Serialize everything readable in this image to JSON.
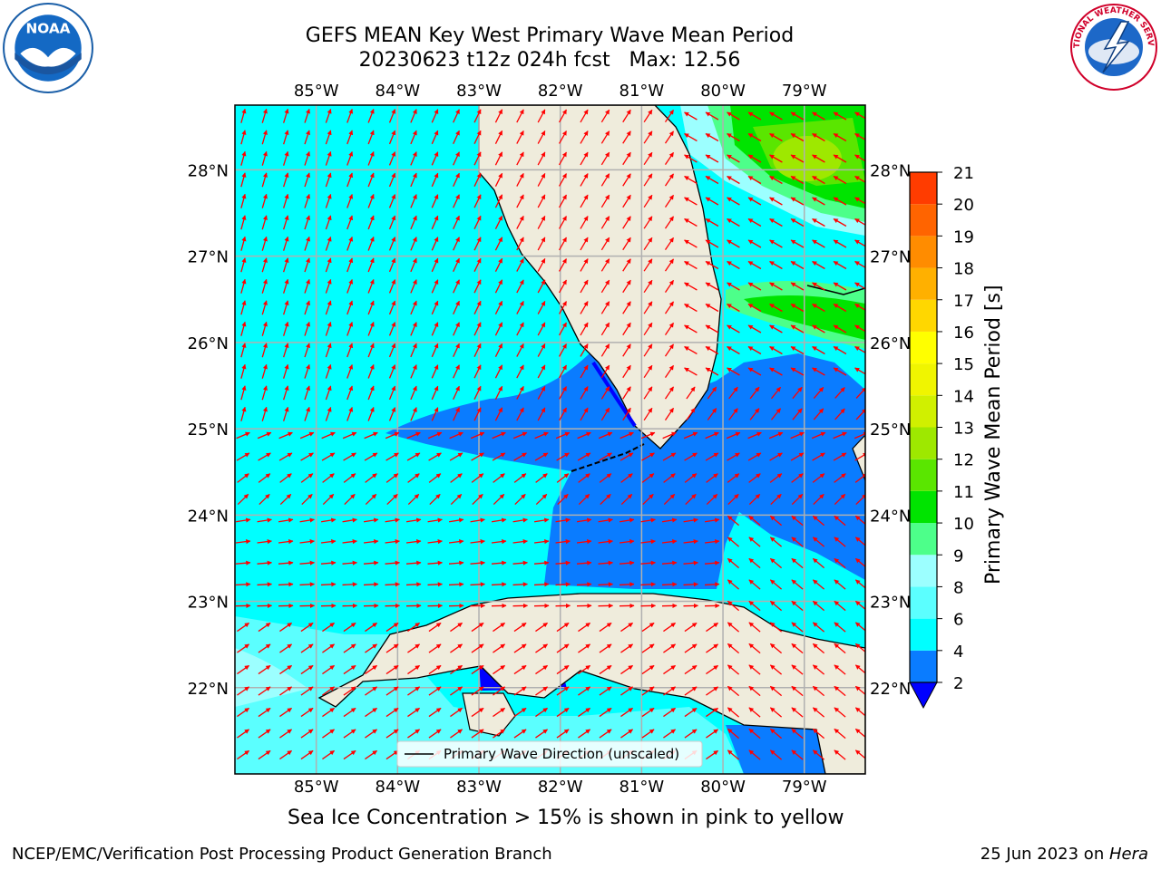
{
  "header": {
    "title_line1": "GEFS MEAN Key West Primary Wave Mean Period",
    "title_line2": "20230623 t12z 024h fcst   Max: 12.56"
  },
  "logos": {
    "left": {
      "icon": "noaa-logo-icon",
      "text": "NOAA"
    },
    "right": {
      "icon": "nws-logo-icon",
      "text": "NATIONAL WEATHER SERVICE"
    }
  },
  "map": {
    "lon_ticks": [
      "85°W",
      "84°W",
      "83°W",
      "82°W",
      "81°W",
      "80°W",
      "79°W"
    ],
    "lon_values": [
      -85,
      -84,
      -83,
      -82,
      -81,
      -80,
      -79
    ],
    "lat_ticks": [
      "28°N",
      "27°N",
      "26°N",
      "25°N",
      "24°N",
      "23°N",
      "22°N"
    ],
    "lat_values": [
      28,
      27,
      26,
      25,
      24,
      23,
      22
    ],
    "extent": {
      "lon_min": -86.0,
      "lon_max": -78.25,
      "lat_min": 21.0,
      "lat_max": 28.75
    },
    "grid": true,
    "land_color": "#efecdc",
    "arrow_color": "#ff0000",
    "legend_entry": "Primary Wave Direction (unscaled)"
  },
  "colorbar": {
    "label": "Primary Wave Mean Period [s]",
    "ticks": [
      "2",
      "4",
      "6",
      "8",
      "9",
      "10",
      "11",
      "12",
      "13",
      "14",
      "15",
      "16",
      "17",
      "18",
      "19",
      "20",
      "21"
    ],
    "levels": [
      2,
      4,
      6,
      8,
      9,
      10,
      11,
      12,
      13,
      14,
      15,
      16,
      17,
      18,
      19,
      20,
      21
    ],
    "colors": [
      "#0a7cff",
      "#00ffff",
      "#5bffff",
      "#9cffff",
      "#4dff8a",
      "#00e400",
      "#5ae600",
      "#9ee800",
      "#d0f000",
      "#f0f500",
      "#ffff00",
      "#ffd700",
      "#ffb000",
      "#ff8c00",
      "#ff6400",
      "#ff3c00",
      "#ff0000"
    ],
    "extend_min_color": "#0000ff"
  },
  "chart_data": {
    "type": "heatmap",
    "title": "GEFS MEAN Key West Primary Wave Mean Period",
    "subtitle": "20230623 t12z 024h fcst   Max: 12.56",
    "max_value": 12.56,
    "units": "s",
    "colorbar_label": "Primary Wave Mean Period [s]"
  },
  "footer": {
    "note": "Sea Ice Concentration > 15% is shown in pink to yellow",
    "left": "NCEP/EMC/Verification Post Processing Product Generation Branch",
    "right_prefix": "25 Jun 2023 on ",
    "right_host": "Hera"
  }
}
